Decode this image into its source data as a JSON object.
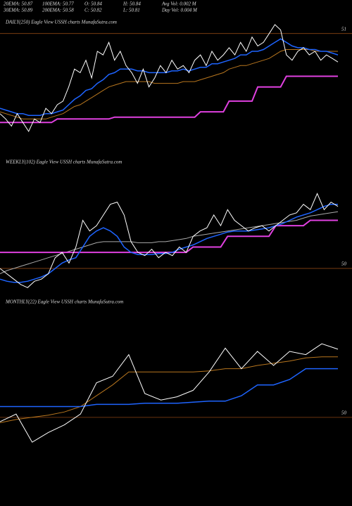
{
  "header": {
    "stats": [
      [
        "20EMA: 50.87",
        "100EMA: 50.77",
        "O: 50.84",
        "H: 50.84",
        "Avg Vol: 0.002 M"
      ],
      [
        "30EMA: 50.89",
        "200EMA: 50.58",
        "C: 50.82",
        "L: 50.81",
        "Day Vol: 0.004 M"
      ]
    ]
  },
  "chart_data": [
    {
      "type": "line",
      "title": "DAILY(250) Eagle View USSH charts MunafaSutra.com",
      "ylim": [
        50.3,
        51.05
      ],
      "yticks": [
        51
      ],
      "grid": true,
      "series": [
        {
          "color": "#b8761e",
          "values": [
            50.56,
            50.55,
            50.54,
            50.53,
            50.52,
            50.52,
            50.52,
            50.52,
            50.52,
            50.53,
            50.54,
            50.55,
            50.57,
            50.59,
            50.6,
            50.62,
            50.64,
            50.66,
            50.68,
            50.7,
            50.71,
            50.72,
            50.73,
            50.73,
            50.73,
            50.73,
            50.73,
            50.72,
            50.72,
            50.72,
            50.72,
            50.72,
            50.73,
            50.73,
            50.73,
            50.74,
            50.75,
            50.76,
            50.77,
            50.78,
            50.8,
            50.81,
            50.82,
            50.82,
            50.83,
            50.84,
            50.85,
            50.86,
            50.88,
            50.9,
            50.91,
            50.91,
            50.91,
            50.91,
            50.91,
            50.9,
            50.9,
            50.9,
            50.9,
            50.9
          ]
        },
        {
          "color": "#e040e0",
          "values": [
            50.5,
            50.5,
            50.5,
            50.5,
            50.5,
            50.5,
            50.5,
            50.5,
            50.5,
            50.5,
            50.52,
            50.52,
            50.52,
            50.52,
            50.52,
            50.52,
            50.52,
            50.52,
            50.52,
            50.52,
            50.53,
            50.53,
            50.53,
            50.53,
            50.53,
            50.53,
            50.53,
            50.53,
            50.53,
            50.53,
            50.53,
            50.53,
            50.53,
            50.53,
            50.53,
            50.56,
            50.56,
            50.56,
            50.56,
            50.56,
            50.62,
            50.62,
            50.62,
            50.62,
            50.62,
            50.7,
            50.7,
            50.7,
            50.7,
            50.7,
            50.76,
            50.76,
            50.76,
            50.76,
            50.76,
            50.76,
            50.76,
            50.76,
            50.76,
            50.76
          ]
        },
        {
          "color": "#1e64ff",
          "values": [
            50.58,
            50.57,
            50.56,
            50.55,
            50.55,
            50.54,
            50.54,
            50.54,
            50.55,
            50.55,
            50.56,
            50.57,
            50.6,
            50.63,
            50.65,
            50.68,
            50.69,
            50.72,
            50.74,
            50.77,
            50.78,
            50.8,
            50.8,
            50.8,
            50.79,
            50.79,
            50.78,
            50.78,
            50.78,
            50.78,
            50.79,
            50.79,
            50.8,
            50.79,
            50.8,
            50.81,
            50.81,
            50.83,
            50.83,
            50.84,
            50.85,
            50.86,
            50.88,
            50.88,
            50.9,
            50.9,
            50.91,
            50.93,
            50.95,
            50.97,
            50.95,
            50.93,
            50.92,
            50.92,
            50.91,
            50.91,
            50.9,
            50.9,
            50.89,
            50.88
          ]
        },
        {
          "color": "#ffffff",
          "values": [
            50.55,
            50.52,
            50.48,
            50.55,
            50.5,
            50.45,
            50.52,
            50.5,
            50.58,
            50.55,
            50.6,
            50.62,
            50.7,
            50.8,
            50.78,
            50.85,
            50.75,
            50.9,
            50.88,
            50.95,
            50.85,
            50.9,
            50.82,
            50.78,
            50.72,
            50.8,
            50.7,
            50.75,
            50.82,
            50.78,
            50.85,
            50.8,
            50.82,
            50.78,
            50.85,
            50.88,
            50.82,
            50.9,
            50.85,
            50.88,
            50.92,
            50.88,
            50.95,
            50.9,
            50.98,
            50.93,
            50.95,
            51.0,
            51.05,
            51.02,
            50.88,
            50.85,
            50.9,
            50.92,
            50.88,
            50.9,
            50.85,
            50.88,
            50.86,
            50.84
          ]
        }
      ]
    },
    {
      "type": "line",
      "title": "WEEKLY(102) Eagle View USSH charts MunafaSutra.com",
      "ylim": [
        49.75,
        50.9
      ],
      "yticks": [
        50
      ],
      "grid": true,
      "series": [
        {
          "color": "#aaaaaa",
          "values": [
            49.95,
            49.98,
            50.0,
            50.02,
            50.04,
            50.06,
            50.08,
            50.1,
            50.12,
            50.14,
            50.16,
            50.18,
            50.2,
            50.22,
            50.24,
            50.25,
            50.25,
            50.25,
            50.25,
            50.25,
            50.24,
            50.24,
            50.24,
            50.25,
            50.25,
            50.26,
            50.27,
            50.28,
            50.3,
            50.31,
            50.32,
            50.33,
            50.34,
            50.35,
            50.36,
            50.37,
            50.38,
            50.39,
            50.4,
            50.41,
            50.42,
            50.43,
            50.44,
            50.45,
            50.47,
            50.49,
            50.5,
            50.51,
            50.52,
            50.53
          ]
        },
        {
          "color": "#e040e0",
          "values": [
            50.15,
            50.15,
            50.15,
            50.15,
            50.15,
            50.15,
            50.15,
            50.15,
            50.15,
            50.15,
            50.15,
            50.15,
            50.15,
            50.15,
            50.15,
            50.15,
            50.15,
            50.15,
            50.15,
            50.15,
            50.15,
            50.15,
            50.15,
            50.15,
            50.15,
            50.15,
            50.15,
            50.15,
            50.2,
            50.2,
            50.2,
            50.2,
            50.2,
            50.3,
            50.3,
            50.3,
            50.3,
            50.3,
            50.3,
            50.3,
            50.4,
            50.4,
            50.4,
            50.4,
            50.4,
            50.45,
            50.45,
            50.45,
            50.45,
            50.45
          ]
        },
        {
          "color": "#1e64ff",
          "values": [
            49.9,
            49.88,
            49.87,
            49.87,
            49.88,
            49.9,
            49.92,
            49.95,
            50.0,
            50.05,
            50.08,
            50.1,
            50.2,
            50.3,
            50.35,
            50.38,
            50.35,
            50.3,
            50.2,
            50.15,
            50.13,
            50.13,
            50.13,
            50.14,
            50.14,
            50.15,
            50.18,
            50.2,
            50.22,
            50.25,
            50.28,
            50.3,
            50.32,
            50.34,
            50.35,
            50.35,
            50.35,
            50.36,
            50.37,
            50.38,
            50.4,
            50.42,
            50.45,
            50.48,
            50.5,
            50.52,
            50.55,
            50.58,
            50.6,
            50.6
          ]
        },
        {
          "color": "#ffffff",
          "values": [
            50.0,
            49.95,
            49.9,
            49.85,
            49.82,
            49.88,
            49.9,
            49.95,
            50.1,
            50.15,
            50.05,
            50.2,
            50.45,
            50.35,
            50.4,
            50.5,
            50.6,
            50.62,
            50.5,
            50.25,
            50.15,
            50.12,
            50.18,
            50.1,
            50.15,
            50.12,
            50.2,
            50.15,
            50.3,
            50.35,
            50.38,
            50.5,
            50.4,
            50.55,
            50.45,
            50.4,
            50.35,
            50.38,
            50.4,
            50.35,
            50.4,
            50.45,
            50.5,
            50.52,
            50.6,
            50.55,
            50.7,
            50.55,
            50.62,
            50.58
          ]
        }
      ]
    },
    {
      "type": "line",
      "title": "MONTHLY(22) Eagle View USSH charts MunafaSutra.com",
      "ylim": [
        49.7,
        51.0
      ],
      "yticks": [
        50
      ],
      "grid": true,
      "series": [
        {
          "color": "#b8761e",
          "values": [
            49.95,
            49.98,
            50.0,
            50.02,
            50.05,
            50.1,
            50.2,
            50.3,
            50.42,
            50.42,
            50.42,
            50.42,
            50.42,
            50.43,
            50.45,
            50.45,
            50.48,
            50.5,
            50.52,
            50.55,
            50.56,
            50.56
          ]
        },
        {
          "color": "#1e64ff",
          "values": [
            50.1,
            50.1,
            50.1,
            50.1,
            50.1,
            50.1,
            50.12,
            50.12,
            50.12,
            50.13,
            50.13,
            50.13,
            50.14,
            50.15,
            50.15,
            50.2,
            50.3,
            50.3,
            50.35,
            50.45,
            50.45,
            50.45
          ]
        },
        {
          "color": "#ffffff",
          "values": [
            49.96,
            50.03,
            49.77,
            49.86,
            49.93,
            50.03,
            50.32,
            50.38,
            50.58,
            50.22,
            50.16,
            50.19,
            50.25,
            50.42,
            50.64,
            50.45,
            50.61,
            50.48,
            50.61,
            50.58,
            50.68,
            50.63
          ]
        }
      ]
    }
  ]
}
